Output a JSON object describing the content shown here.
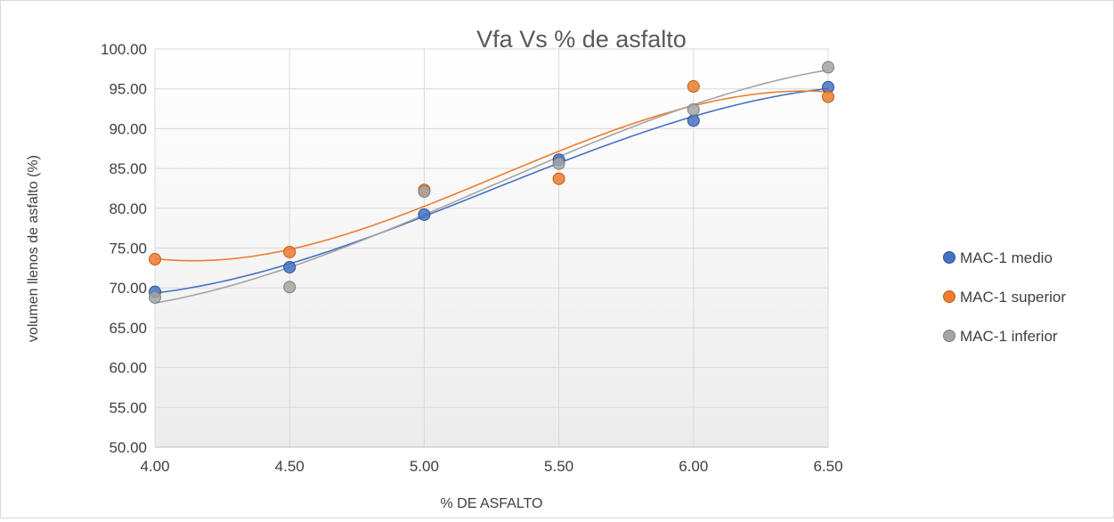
{
  "chart_data": {
    "type": "scatter",
    "title": "Vfa Vs % de asfalto",
    "xlabel": "% DE ASFALTO",
    "ylabel": "volumen llenos de asfalto (%)",
    "xlim": [
      4.0,
      6.5
    ],
    "ylim": [
      50,
      100
    ],
    "x_ticks": [
      "4.00",
      "4.50",
      "5.00",
      "5.50",
      "6.00",
      "6.50"
    ],
    "y_ticks": [
      "50.00",
      "55.00",
      "60.00",
      "65.00",
      "70.00",
      "75.00",
      "80.00",
      "85.00",
      "90.00",
      "95.00",
      "100.00"
    ],
    "grid": true,
    "legend_position": "right",
    "trendline": "polynomial",
    "series": [
      {
        "name": "MAC-1 medio",
        "color": "#4472c4",
        "x": [
          4.0,
          4.5,
          5.0,
          5.5,
          6.0,
          6.5
        ],
        "y": [
          69.5,
          72.6,
          79.2,
          86.1,
          91.0,
          95.2
        ]
      },
      {
        "name": "MAC-1 superior",
        "color": "#ed7d31",
        "x": [
          4.0,
          4.5,
          5.0,
          5.5,
          6.0,
          6.5
        ],
        "y": [
          73.6,
          74.5,
          82.3,
          83.7,
          95.3,
          94.0
        ]
      },
      {
        "name": "MAC-1 inferior",
        "color": "#a5a5a5",
        "x": [
          4.0,
          4.5,
          5.0,
          5.5,
          6.0,
          6.5
        ],
        "y": [
          68.8,
          70.1,
          82.1,
          85.6,
          92.4,
          97.7
        ]
      }
    ]
  }
}
